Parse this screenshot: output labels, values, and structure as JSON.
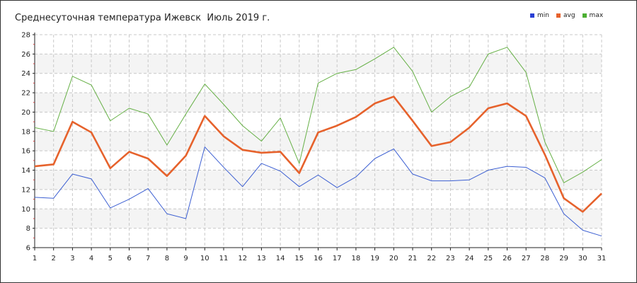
{
  "title": "Среднесуточная температура Ижевск  Июль 2019 г.",
  "colors": {
    "min": "#3c5fd2",
    "avg": "#e6622c",
    "max": "#66b046",
    "band": "#f4f4f4",
    "grid": "#c8c8c8"
  },
  "chart_data": {
    "type": "line",
    "title": "Среднесуточная температура Ижевск  Июль 2019 г.",
    "xlabel": "",
    "ylabel": "",
    "x": [
      1,
      2,
      3,
      4,
      5,
      6,
      7,
      8,
      9,
      10,
      11,
      12,
      13,
      14,
      15,
      16,
      17,
      18,
      19,
      20,
      21,
      22,
      23,
      24,
      25,
      26,
      27,
      28,
      29,
      30,
      31
    ],
    "xlim": [
      1,
      31
    ],
    "ylim": [
      6,
      28
    ],
    "yticks": [
      6,
      8,
      10,
      12,
      14,
      16,
      18,
      20,
      22,
      24,
      26,
      28
    ],
    "grid": true,
    "legend_position": "top-right",
    "series": [
      {
        "name": "min",
        "values": [
          11.2,
          11.1,
          13.6,
          13.1,
          10.1,
          11.0,
          12.1,
          9.5,
          9.0,
          16.4,
          14.3,
          12.3,
          14.7,
          13.9,
          12.3,
          13.5,
          12.2,
          13.3,
          15.2,
          16.2,
          13.6,
          12.9,
          12.9,
          13.0,
          14.0,
          14.4,
          14.3,
          13.2,
          9.5,
          7.8,
          7.2
        ]
      },
      {
        "name": "avg",
        "values": [
          14.4,
          14.6,
          19.0,
          17.9,
          14.2,
          15.9,
          15.2,
          13.4,
          15.5,
          19.6,
          17.5,
          16.1,
          15.8,
          15.9,
          13.7,
          17.9,
          18.6,
          19.5,
          20.9,
          21.6,
          19.1,
          16.5,
          16.9,
          18.4,
          20.4,
          20.9,
          19.6,
          15.6,
          11.1,
          9.7,
          11.6
        ]
      },
      {
        "name": "max",
        "values": [
          18.4,
          18.0,
          23.7,
          22.8,
          19.1,
          20.4,
          19.8,
          16.6,
          19.8,
          22.9,
          20.8,
          18.6,
          17.0,
          19.4,
          14.7,
          23.0,
          24.0,
          24.4,
          25.5,
          26.7,
          24.2,
          20.0,
          21.6,
          22.6,
          26.0,
          26.7,
          24.1,
          16.9,
          12.7,
          13.8,
          15.1
        ]
      }
    ]
  }
}
